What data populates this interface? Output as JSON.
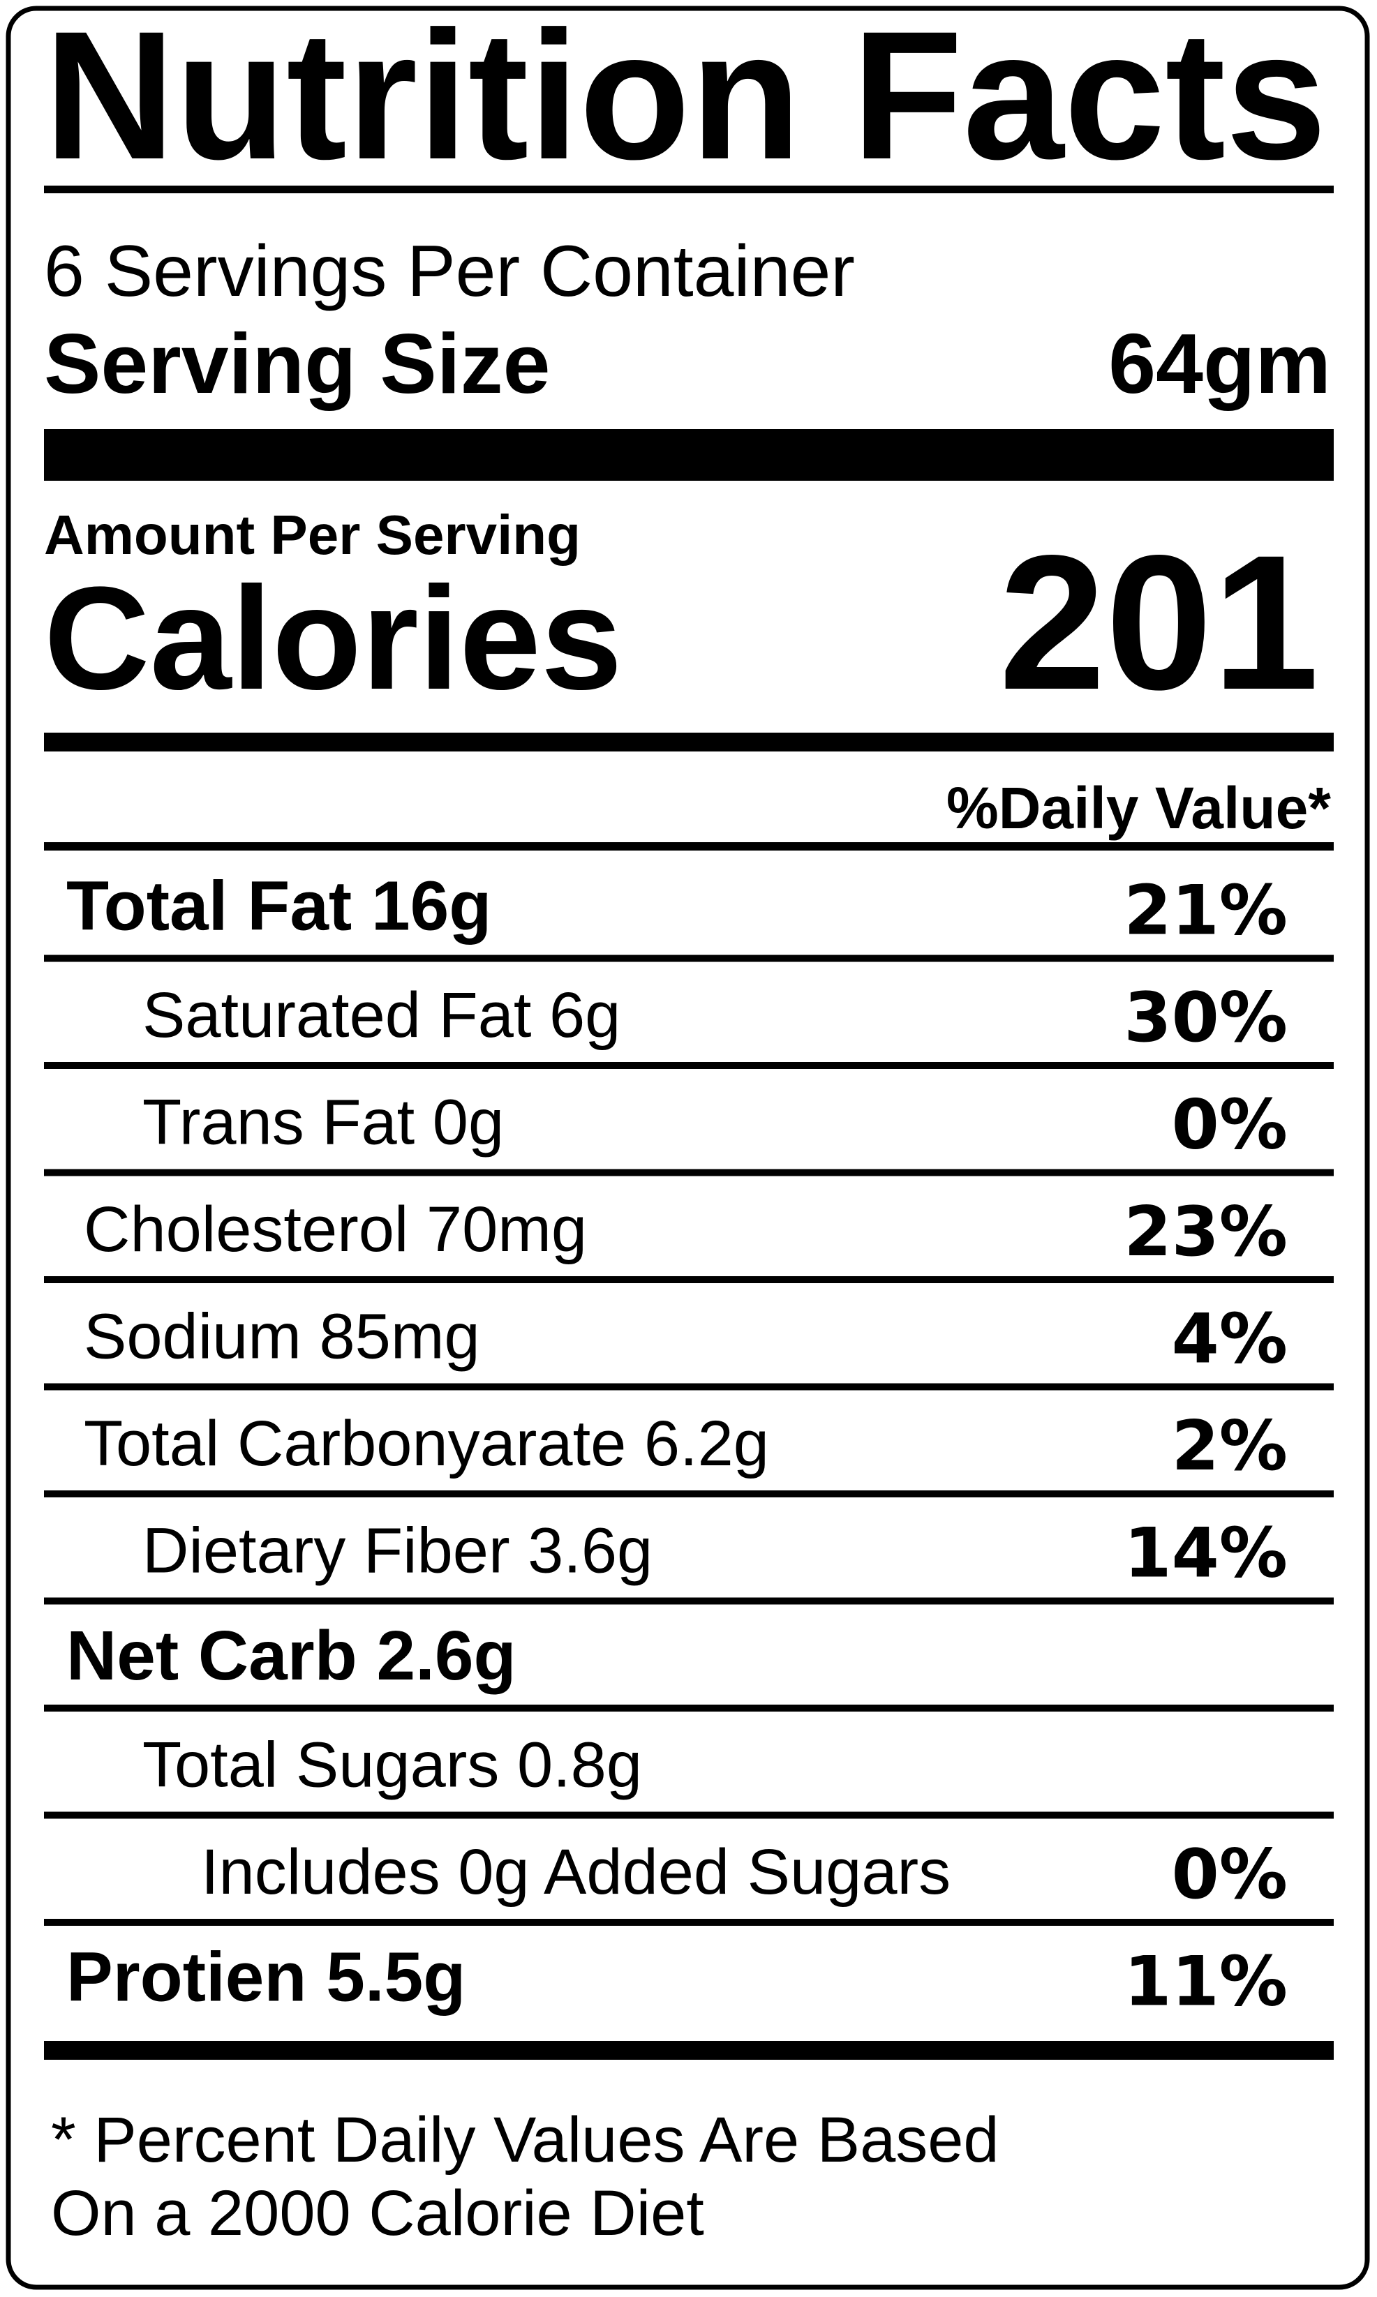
{
  "header": {
    "title": "Nutrition Facts",
    "servings": "6 Servings Per Container",
    "serving_size_label": "Serving Size",
    "serving_size_value": "64gm"
  },
  "calories": {
    "label_top": "Amount Per Serving",
    "label": "Calories",
    "value": 201
  },
  "daily_value_header": "%Daily Value*",
  "rows": [
    {
      "label": "Total Fat 16g",
      "dv": "21%"
    },
    {
      "label": "Saturated Fat 6g",
      "dv": "30%"
    },
    {
      "label": "Trans Fat 0g",
      "dv": "0%"
    },
    {
      "label": "Cholesterol 70mg",
      "dv": "23%"
    },
    {
      "label": "Sodium 85mg",
      "dv": "4%"
    },
    {
      "label": "Total Carbonyarate 6.2g",
      "dv": "2%"
    },
    {
      "label": "Dietary Fiber 3.6g",
      "dv": "14%"
    },
    {
      "label": "Net Carb 2.6g"
    },
    {
      "label": "Total Sugars 0.8g"
    },
    {
      "label": "Includes 0g Added Sugars",
      "dv": "0%"
    },
    {
      "label": "Protien 5.5g",
      "dv": "11%"
    }
  ],
  "footnote": [
    "* Percent Daily Values Are Based",
    "On a 2000 Calorie Diet"
  ]
}
